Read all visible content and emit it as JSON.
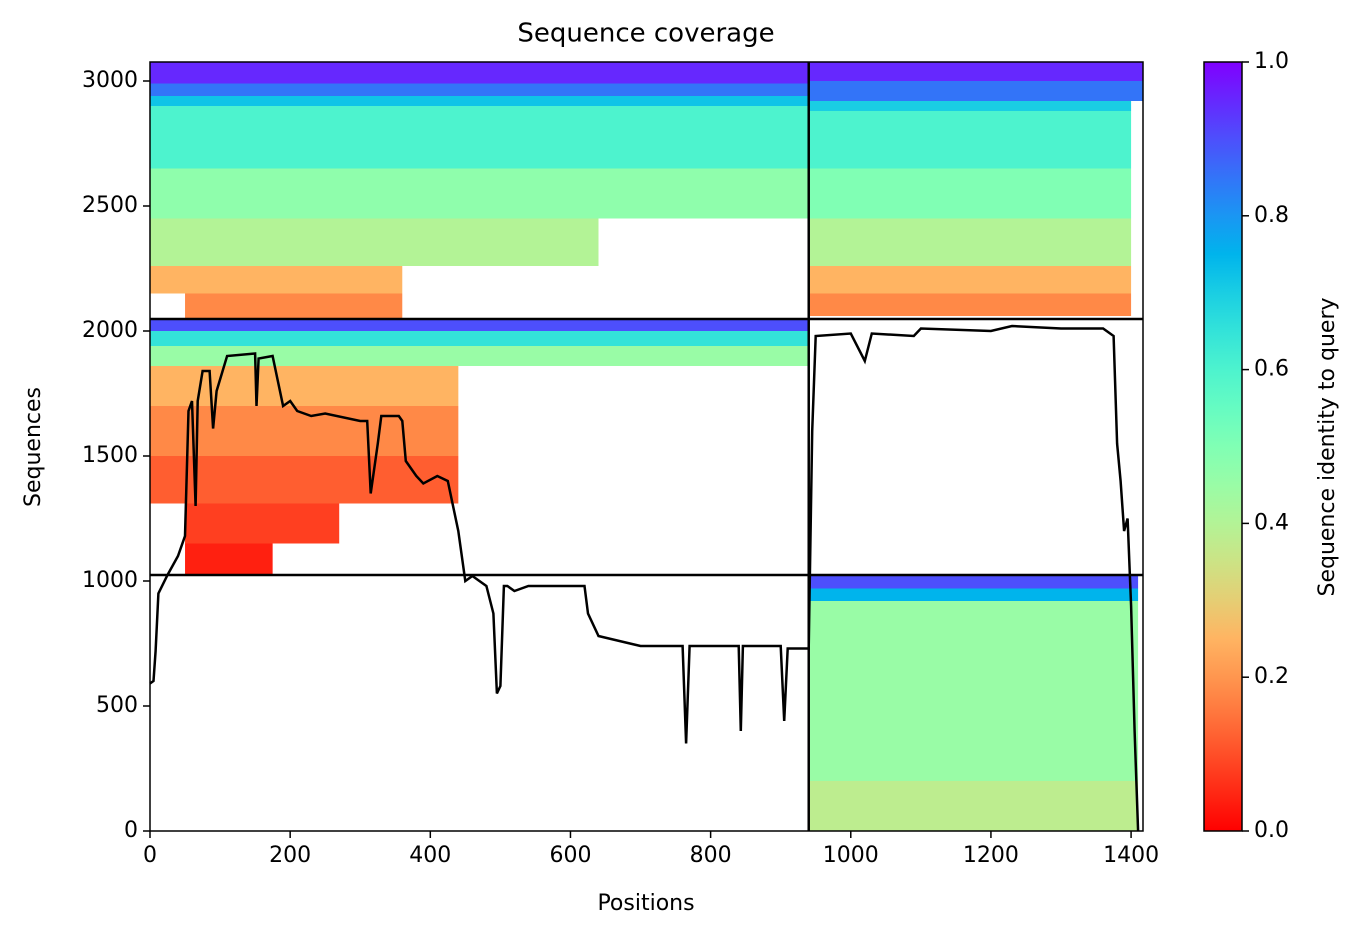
{
  "chart_data": {
    "type": "msa_coverage",
    "title": "Sequence coverage",
    "x_label": "Positions",
    "y_label": "Sequences",
    "colorbar_label": "Sequence identity to query",
    "colormap": "rainbow_r",
    "xlim": [
      0,
      1417
    ],
    "xticks": [
      0,
      200,
      400,
      600,
      800,
      1000,
      1200,
      1400
    ],
    "ylim": [
      0,
      3076
    ],
    "yticks": [
      0,
      500,
      1000,
      1500,
      2000,
      2500,
      3000
    ],
    "clim": [
      0,
      1
    ],
    "cticks": [
      {
        "value": 0,
        "label": "0.0"
      },
      {
        "value": 0.2,
        "label": "0.2"
      },
      {
        "value": 0.4,
        "label": "0.4"
      },
      {
        "value": 0.6,
        "label": "0.6"
      },
      {
        "value": 0.8,
        "label": "0.8"
      },
      {
        "value": 1,
        "label": "1.0"
      }
    ],
    "dividers": {
      "x": [
        940
      ],
      "y": [
        1024,
        2048
      ]
    },
    "blocks": [
      {
        "x": [
          0,
          940
        ],
        "y": [
          2990,
          3076
        ],
        "identity": 0.95
      },
      {
        "x": [
          0,
          940
        ],
        "y": [
          2940,
          2990
        ],
        "identity": 0.85
      },
      {
        "x": [
          0,
          940
        ],
        "y": [
          2900,
          2940
        ],
        "identity": 0.72
      },
      {
        "x": [
          0,
          940
        ],
        "y": [
          2650,
          2900
        ],
        "identity": 0.6
      },
      {
        "x": [
          0,
          940
        ],
        "y": [
          2450,
          2650
        ],
        "identity": 0.47
      },
      {
        "x": [
          0,
          640
        ],
        "y": [
          2260,
          2450
        ],
        "identity": 0.4
      },
      {
        "x": [
          0,
          360
        ],
        "y": [
          2150,
          2260
        ],
        "identity": 0.25
      },
      {
        "x": [
          50,
          360
        ],
        "y": [
          2048,
          2150
        ],
        "identity": 0.18
      },
      {
        "x": [
          940,
          1417
        ],
        "y": [
          3000,
          3076
        ],
        "identity": 0.95
      },
      {
        "x": [
          940,
          1417
        ],
        "y": [
          2920,
          3000
        ],
        "identity": 0.85
      },
      {
        "x": [
          940,
          1400
        ],
        "y": [
          2880,
          2920
        ],
        "identity": 0.7
      },
      {
        "x": [
          940,
          1400
        ],
        "y": [
          2650,
          2880
        ],
        "identity": 0.6
      },
      {
        "x": [
          940,
          1400
        ],
        "y": [
          2450,
          2650
        ],
        "identity": 0.5
      },
      {
        "x": [
          940,
          1400
        ],
        "y": [
          2260,
          2450
        ],
        "identity": 0.4
      },
      {
        "x": [
          940,
          1400
        ],
        "y": [
          2150,
          2260
        ],
        "identity": 0.25
      },
      {
        "x": [
          940,
          1400
        ],
        "y": [
          2060,
          2150
        ],
        "identity": 0.18
      },
      {
        "x": [
          0,
          940
        ],
        "y": [
          2000,
          2048
        ],
        "identity": 0.9
      },
      {
        "x": [
          0,
          940
        ],
        "y": [
          1940,
          2000
        ],
        "identity": 0.65
      },
      {
        "x": [
          0,
          940
        ],
        "y": [
          1860,
          1940
        ],
        "identity": 0.45
      },
      {
        "x": [
          0,
          440
        ],
        "y": [
          1700,
          1860
        ],
        "identity": 0.25
      },
      {
        "x": [
          0,
          440
        ],
        "y": [
          1500,
          1700
        ],
        "identity": 0.18
      },
      {
        "x": [
          0,
          440
        ],
        "y": [
          1310,
          1500
        ],
        "identity": 0.12
      },
      {
        "x": [
          50,
          270
        ],
        "y": [
          1150,
          1310
        ],
        "identity": 0.08
      },
      {
        "x": [
          50,
          175
        ],
        "y": [
          1024,
          1150
        ],
        "identity": 0.04
      },
      {
        "x": [
          940,
          1410
        ],
        "y": [
          970,
          1024
        ],
        "identity": 0.9
      },
      {
        "x": [
          940,
          1410
        ],
        "y": [
          920,
          970
        ],
        "identity": 0.75
      },
      {
        "x": [
          940,
          1410
        ],
        "y": [
          200,
          920
        ],
        "identity": 0.45
      },
      {
        "x": [
          940,
          1410
        ],
        "y": [
          0,
          200
        ],
        "identity": 0.38
      }
    ],
    "coverage": {
      "color": "#000000",
      "x": [
        0,
        5,
        8,
        12,
        25,
        40,
        50,
        55,
        60,
        65,
        68,
        75,
        85,
        90,
        95,
        110,
        150,
        152,
        155,
        175,
        190,
        200,
        210,
        230,
        250,
        300,
        310,
        315,
        325,
        330,
        355,
        360,
        365,
        380,
        390,
        410,
        425,
        440,
        450,
        460,
        480,
        490,
        495,
        500,
        505,
        510,
        520,
        540,
        580,
        620,
        625,
        640,
        700,
        760,
        765,
        770,
        840,
        843,
        846,
        900,
        905,
        910,
        940,
        945,
        950,
        1000,
        1020,
        1030,
        1090,
        1100,
        1200,
        1230,
        1300,
        1360,
        1375,
        1380,
        1385,
        1390,
        1395,
        1400,
        1405,
        1410
      ],
      "values": [
        590,
        600,
        720,
        950,
        1024,
        1100,
        1180,
        1680,
        1720,
        1300,
        1720,
        1840,
        1840,
        1610,
        1760,
        1900,
        1910,
        1700,
        1890,
        1900,
        1700,
        1720,
        1680,
        1660,
        1670,
        1640,
        1640,
        1350,
        1550,
        1660,
        1660,
        1640,
        1480,
        1420,
        1390,
        1420,
        1400,
        1200,
        1000,
        1020,
        980,
        870,
        550,
        580,
        980,
        980,
        960,
        980,
        980,
        980,
        870,
        780,
        740,
        740,
        350,
        740,
        740,
        400,
        740,
        740,
        440,
        730,
        730,
        1600,
        1980,
        1990,
        1880,
        1990,
        1980,
        2010,
        2000,
        2020,
        2010,
        2010,
        1980,
        1550,
        1400,
        1200,
        1250,
        900,
        400,
        0
      ]
    }
  }
}
